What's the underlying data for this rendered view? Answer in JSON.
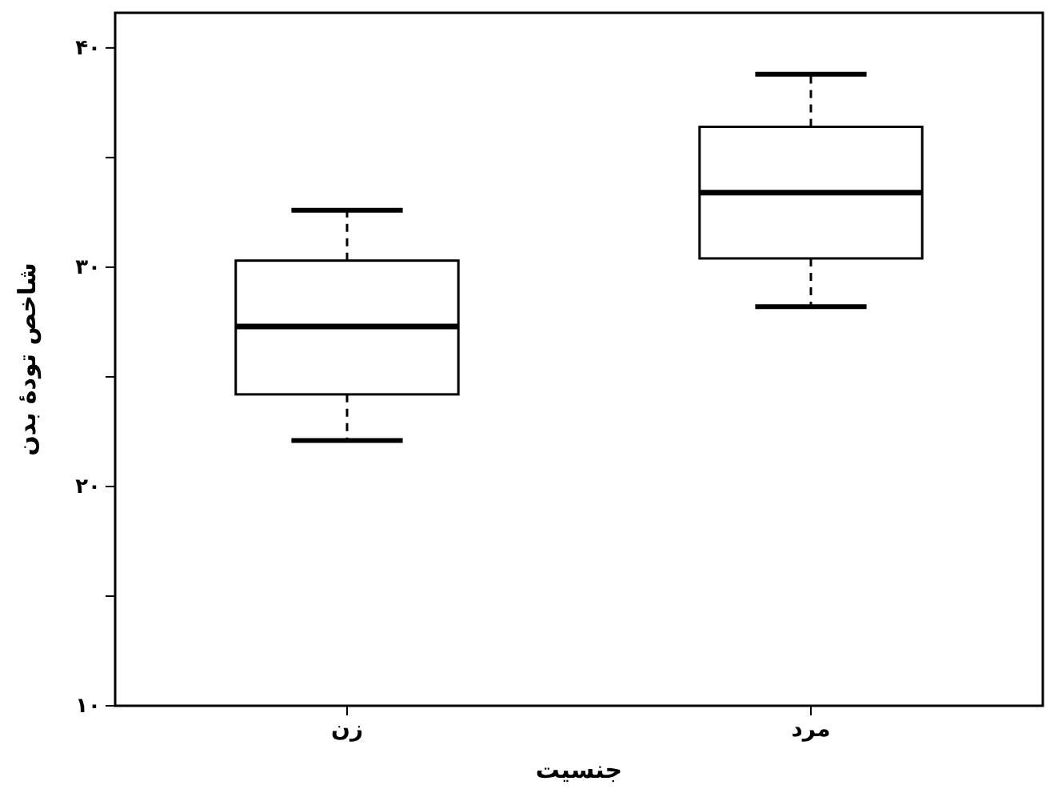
{
  "chart_data": {
    "type": "box",
    "xlabel": "جنسیت",
    "ylabel": "شاخص تودهٔ بدن",
    "categories": [
      "زن",
      "مرد"
    ],
    "boxes": [
      {
        "low": 22.1,
        "q1": 24.2,
        "median": 27.3,
        "q3": 30.3,
        "high": 32.6
      },
      {
        "low": 28.2,
        "q1": 30.4,
        "median": 33.4,
        "q3": 36.4,
        "high": 38.8
      }
    ],
    "ylim": [
      10,
      41.6
    ],
    "yticks": [
      {
        "value": 10,
        "label": "۱۰"
      },
      {
        "value": 15,
        "label": null
      },
      {
        "value": 20,
        "label": "۲۰"
      },
      {
        "value": 25,
        "label": null
      },
      {
        "value": 30,
        "label": "۳۰"
      },
      {
        "value": 35,
        "label": null
      },
      {
        "value": 40,
        "label": "۴۰"
      }
    ],
    "grid": false
  }
}
